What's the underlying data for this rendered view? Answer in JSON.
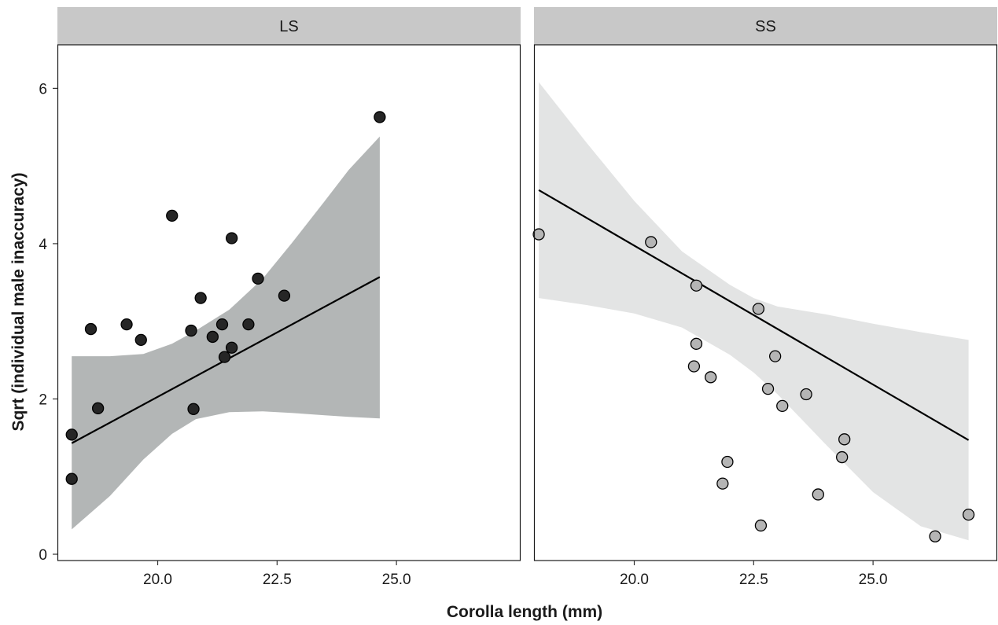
{
  "chart_data": {
    "type": "scatter",
    "xlabel": "Corolla length (mm)",
    "ylabel": "Sqrt (individual male inaccuracy)",
    "ylim": [
      0,
      6.5
    ],
    "yticks": [
      0,
      2,
      4,
      6
    ],
    "ytick_labels": [
      "0",
      "2",
      "4",
      "6"
    ],
    "grid": false,
    "facets": [
      {
        "label": "LS",
        "xlim": [
          17.9,
          27.6
        ],
        "xticks": [
          20.0,
          22.5,
          25.0
        ],
        "xtick_labels": [
          "20.0",
          "22.5",
          "25.0"
        ],
        "point_color": "#262626",
        "band_color": "#b3b6b6",
        "points": [
          {
            "x": 18.2,
            "y": 1.54
          },
          {
            "x": 18.2,
            "y": 0.97
          },
          {
            "x": 18.6,
            "y": 2.9
          },
          {
            "x": 18.75,
            "y": 1.88
          },
          {
            "x": 19.35,
            "y": 2.96
          },
          {
            "x": 19.65,
            "y": 2.76
          },
          {
            "x": 20.3,
            "y": 4.36
          },
          {
            "x": 20.7,
            "y": 2.88
          },
          {
            "x": 20.75,
            "y": 1.87
          },
          {
            "x": 20.9,
            "y": 3.3
          },
          {
            "x": 21.15,
            "y": 2.8
          },
          {
            "x": 21.35,
            "y": 2.96
          },
          {
            "x": 21.4,
            "y": 2.54
          },
          {
            "x": 21.55,
            "y": 2.66
          },
          {
            "x": 21.55,
            "y": 4.07
          },
          {
            "x": 21.9,
            "y": 2.96
          },
          {
            "x": 22.1,
            "y": 3.55
          },
          {
            "x": 22.65,
            "y": 3.33
          },
          {
            "x": 24.65,
            "y": 5.63
          }
        ],
        "fit": {
          "x": [
            18.2,
            24.65
          ],
          "y": [
            1.43,
            3.57
          ]
        },
        "ci": {
          "x": [
            18.2,
            19.0,
            19.7,
            20.3,
            20.8,
            21.5,
            22.2,
            22.8,
            23.5,
            24.0,
            24.65
          ],
          "lower": [
            0.32,
            0.75,
            1.22,
            1.55,
            1.74,
            1.83,
            1.84,
            1.82,
            1.79,
            1.77,
            1.75
          ],
          "upper": [
            2.55,
            2.55,
            2.58,
            2.71,
            2.88,
            3.15,
            3.55,
            4.0,
            4.55,
            4.95,
            5.38
          ]
        }
      },
      {
        "label": "SS",
        "xlim": [
          17.9,
          27.6
        ],
        "xticks": [
          20.0,
          22.5,
          25.0
        ],
        "xtick_labels": [
          "20.0",
          "22.5",
          "25.0"
        ],
        "point_color": "#b5b5b5",
        "band_color": "#e3e4e4",
        "points": [
          {
            "x": 18.0,
            "y": 4.12
          },
          {
            "x": 20.35,
            "y": 4.02
          },
          {
            "x": 21.3,
            "y": 3.46
          },
          {
            "x": 21.3,
            "y": 2.71
          },
          {
            "x": 21.25,
            "y": 2.42
          },
          {
            "x": 21.6,
            "y": 2.28
          },
          {
            "x": 21.85,
            "y": 0.91
          },
          {
            "x": 21.95,
            "y": 1.19
          },
          {
            "x": 22.6,
            "y": 3.16
          },
          {
            "x": 22.65,
            "y": 0.37
          },
          {
            "x": 22.8,
            "y": 2.13
          },
          {
            "x": 22.95,
            "y": 2.55
          },
          {
            "x": 23.1,
            "y": 1.91
          },
          {
            "x": 23.6,
            "y": 2.06
          },
          {
            "x": 23.85,
            "y": 0.77
          },
          {
            "x": 24.35,
            "y": 1.25
          },
          {
            "x": 24.4,
            "y": 1.48
          },
          {
            "x": 26.3,
            "y": 0.23
          },
          {
            "x": 27.0,
            "y": 0.51
          }
        ],
        "fit": {
          "x": [
            18.0,
            27.0
          ],
          "y": [
            4.69,
            1.47
          ]
        },
        "ci": {
          "x": [
            18.0,
            19.0,
            20.0,
            21.0,
            22.0,
            22.5,
            23.0,
            24.0,
            25.0,
            26.0,
            27.0
          ],
          "lower": [
            3.3,
            3.21,
            3.1,
            2.92,
            2.57,
            2.34,
            2.06,
            1.42,
            0.8,
            0.36,
            0.18
          ],
          "upper": [
            6.08,
            5.3,
            4.55,
            3.9,
            3.47,
            3.3,
            3.19,
            3.09,
            2.97,
            2.86,
            2.76
          ]
        }
      }
    ]
  }
}
